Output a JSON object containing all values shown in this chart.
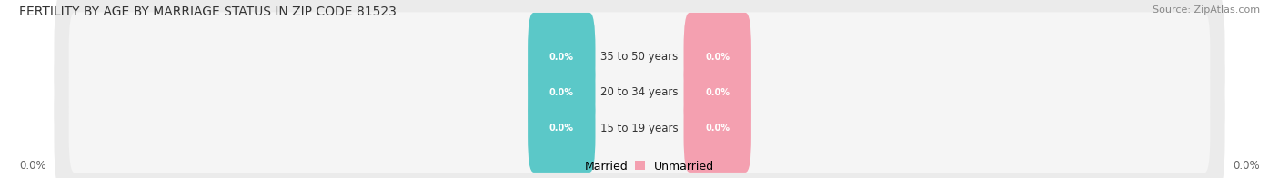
{
  "title": "FERTILITY BY AGE BY MARRIAGE STATUS IN ZIP CODE 81523",
  "source": "Source: ZipAtlas.com",
  "categories": [
    "15 to 19 years",
    "20 to 34 years",
    "35 to 50 years"
  ],
  "married_values": [
    0.0,
    0.0,
    0.0
  ],
  "unmarried_values": [
    0.0,
    0.0,
    0.0
  ],
  "married_color": "#5BC8C8",
  "unmarried_color": "#F4A0B0",
  "title_fontsize": 10,
  "source_fontsize": 8,
  "tick_fontsize": 8.5,
  "legend_fontsize": 9,
  "background_color": "#FFFFFF",
  "bar_bg_color": "#E8E8E8",
  "bar_inner_color": "#F5F5F5",
  "axis_limit": 100,
  "left_label": "0.0%",
  "right_label": "0.0%"
}
